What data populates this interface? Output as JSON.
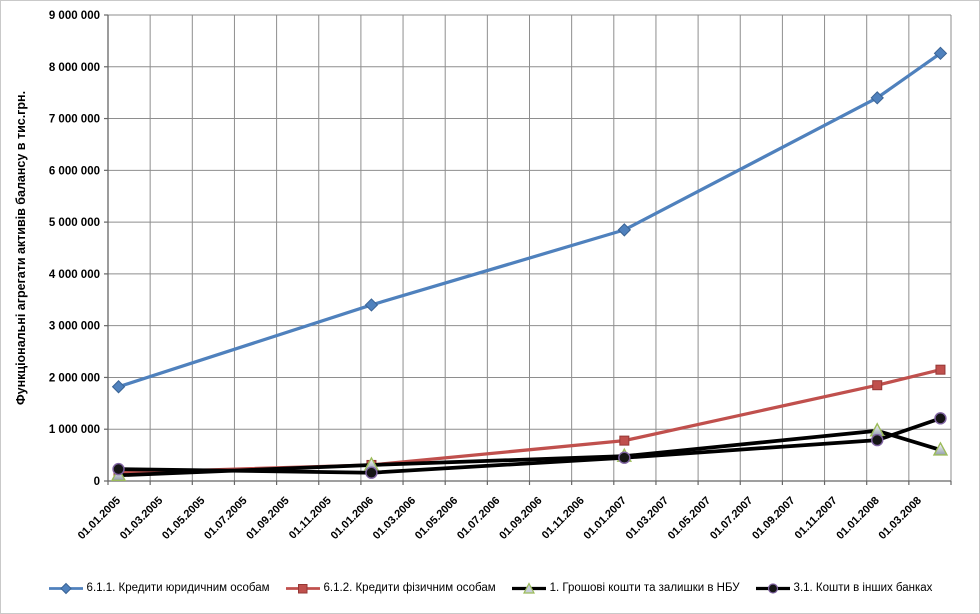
{
  "chart_data": {
    "type": "line",
    "title": "",
    "ylabel": "Функціональні агрегати активів балансу в тис.грн.",
    "ylim": [
      0,
      9000000
    ],
    "ytick_step": 1000000,
    "ytick_labels": [
      "0",
      "1 000 000",
      "2 000 000",
      "3 000 000",
      "4 000 000",
      "5 000 000",
      "6 000 000",
      "7 000 000",
      "8 000 000",
      "9 000 000"
    ],
    "x_axis": {
      "unit": "months since 01.01.2005",
      "range": [
        0,
        40
      ],
      "tick_interval_months": 2,
      "tick_labels": [
        "01.01.2005",
        "01.03.2005",
        "01.05.2005",
        "01.07.2005",
        "01.09.2005",
        "01.11.2005",
        "01.01.2006",
        "01.03.2006",
        "01.05.2006",
        "01.07.2006",
        "01.09.2006",
        "01.11.2006",
        "01.01.2007",
        "01.03.2007",
        "01.05.2007",
        "01.07.2007",
        "01.09.2007",
        "01.11.2007",
        "01.01.2008",
        "01.03.2008"
      ]
    },
    "grid": true,
    "legend_position": "bottom",
    "series": [
      {
        "name": "6.1.1. Кредити юридичним  особам",
        "marker": "diamond",
        "line_color": "#4F81BD",
        "line_width": 3.25,
        "marker_fill": "#4F81BD",
        "marker_stroke": "#3A6394",
        "x_months": [
          0.5,
          12.5,
          24.5,
          36.5,
          39.5
        ],
        "values": [
          1820000,
          3400000,
          4850000,
          7400000,
          8260000
        ]
      },
      {
        "name": "6.1.2. Кредити фізичним особам",
        "marker": "square",
        "line_color": "#C0504D",
        "line_width": 3.25,
        "marker_fill": "#C0504D",
        "marker_stroke": "#953735",
        "x_months": [
          0.5,
          12.5,
          24.5,
          36.5,
          39.5
        ],
        "values": [
          160000,
          310000,
          780000,
          1850000,
          2150000
        ]
      },
      {
        "name": "1. Грошові кошти та залишки в НБУ",
        "marker": "triangle",
        "line_color": "#000000",
        "line_width": 3.75,
        "marker_fill": "#C7CEDA",
        "marker_stroke": "#9BBB59",
        "x_months": [
          0.5,
          12.5,
          24.5,
          36.5,
          39.5
        ],
        "values": [
          110000,
          310000,
          480000,
          970000,
          600000
        ]
      },
      {
        "name": "3.1. Кошти в інших банках",
        "marker": "circle",
        "line_color": "#000000",
        "line_width": 3.75,
        "marker_fill": "#151515",
        "marker_stroke": "#8064A2",
        "x_months": [
          0.5,
          12.5,
          24.5,
          36.5,
          39.5
        ],
        "values": [
          230000,
          160000,
          450000,
          790000,
          1210000
        ]
      }
    ],
    "colors": {
      "background": "#FFFFFF",
      "chart_border": "#C9C9C9",
      "gridline": "#8E8E8E",
      "axis_line": "#666666"
    }
  }
}
